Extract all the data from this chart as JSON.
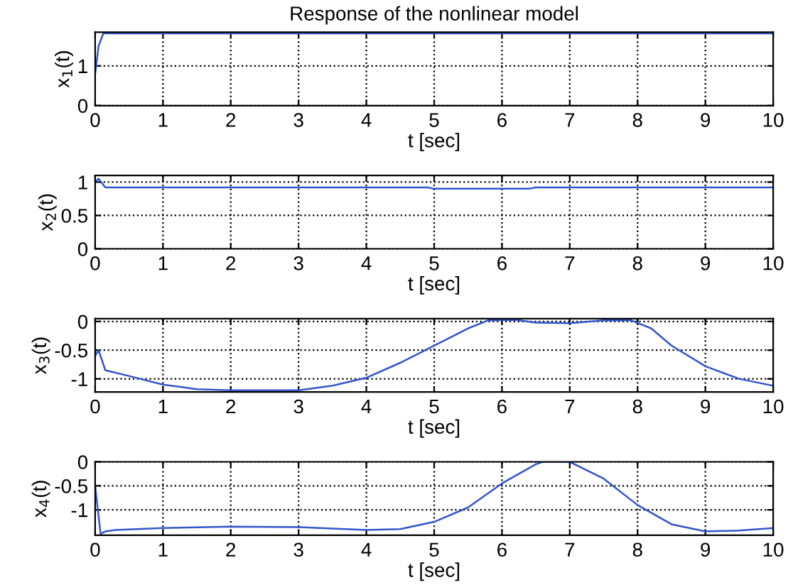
{
  "chart_data": [
    {
      "type": "line",
      "title": "Response of the nonlinear model",
      "xlabel": "t [sec]",
      "ylabel": "x$_{1}$(t)",
      "xlim": [
        0,
        10
      ],
      "xticks": [
        0,
        1,
        2,
        3,
        4,
        5,
        6,
        7,
        8,
        9,
        10
      ],
      "ylim": [
        0,
        1.85
      ],
      "yticks": [
        0,
        1
      ],
      "grid": true,
      "series": [
        {
          "color": "#3355cc",
          "x": [
            0,
            0.05,
            0.12,
            10
          ],
          "values": [
            0.8,
            1.5,
            1.82,
            1.82
          ]
        }
      ]
    },
    {
      "type": "line",
      "xlabel": "t [sec]",
      "ylabel": "x$_{2}$(t)",
      "xlim": [
        0,
        10
      ],
      "xticks": [
        0,
        1,
        2,
        3,
        4,
        5,
        6,
        7,
        8,
        9,
        10
      ],
      "ylim": [
        0,
        1.1
      ],
      "yticks": [
        0,
        0.5,
        1
      ],
      "grid": true,
      "series": [
        {
          "color": "#3355cc",
          "x": [
            0,
            0.05,
            0.15,
            4.9,
            5.0,
            6.4,
            6.5,
            10
          ],
          "values": [
            1.0,
            1.05,
            0.92,
            0.92,
            0.9,
            0.9,
            0.92,
            0.92
          ]
        }
      ]
    },
    {
      "type": "line",
      "xlabel": "t [sec]",
      "ylabel": "x$_{3}$(t)",
      "xlim": [
        0,
        10
      ],
      "xticks": [
        0,
        1,
        2,
        3,
        4,
        5,
        6,
        7,
        8,
        9,
        10
      ],
      "ylim": [
        -1.23,
        0.05
      ],
      "yticks": [
        -1,
        -0.5,
        0
      ],
      "grid": true,
      "series": [
        {
          "color": "#3355cc",
          "x": [
            0,
            0.05,
            0.15,
            0.5,
            1,
            1.5,
            2,
            3,
            3.5,
            4,
            4.5,
            5,
            5.5,
            5.8,
            6.2,
            6.5,
            7,
            7.5,
            7.9,
            8.2,
            8.5,
            9,
            9.5,
            10
          ],
          "values": [
            -0.6,
            -0.5,
            -0.85,
            -0.95,
            -1.1,
            -1.18,
            -1.2,
            -1.2,
            -1.12,
            -0.98,
            -0.72,
            -0.42,
            -0.12,
            0.02,
            0.03,
            -0.02,
            -0.03,
            0.02,
            0.02,
            -0.12,
            -0.42,
            -0.78,
            -1.0,
            -1.12
          ]
        }
      ]
    },
    {
      "type": "line",
      "xlabel": "t [sec]",
      "ylabel": "x$_{4}$(t)",
      "xlim": [
        0,
        10
      ],
      "xticks": [
        0,
        1,
        2,
        3,
        4,
        5,
        6,
        7,
        8,
        9,
        10
      ],
      "ylim": [
        -1.53,
        0
      ],
      "yticks": [
        -1,
        -0.5,
        0
      ],
      "grid": true,
      "series": [
        {
          "color": "#3355cc",
          "x": [
            0,
            0.08,
            0.15,
            0.3,
            1,
            2,
            3,
            4,
            4.5,
            5,
            5.5,
            6,
            6.5,
            6.6,
            7,
            7.5,
            8,
            8.5,
            9,
            9.5,
            10
          ],
          "values": [
            -0.5,
            -1.5,
            -1.45,
            -1.42,
            -1.38,
            -1.35,
            -1.36,
            -1.42,
            -1.4,
            -1.25,
            -0.95,
            -0.45,
            -0.05,
            0,
            0,
            -0.35,
            -0.9,
            -1.3,
            -1.45,
            -1.43,
            -1.38
          ]
        }
      ]
    }
  ]
}
